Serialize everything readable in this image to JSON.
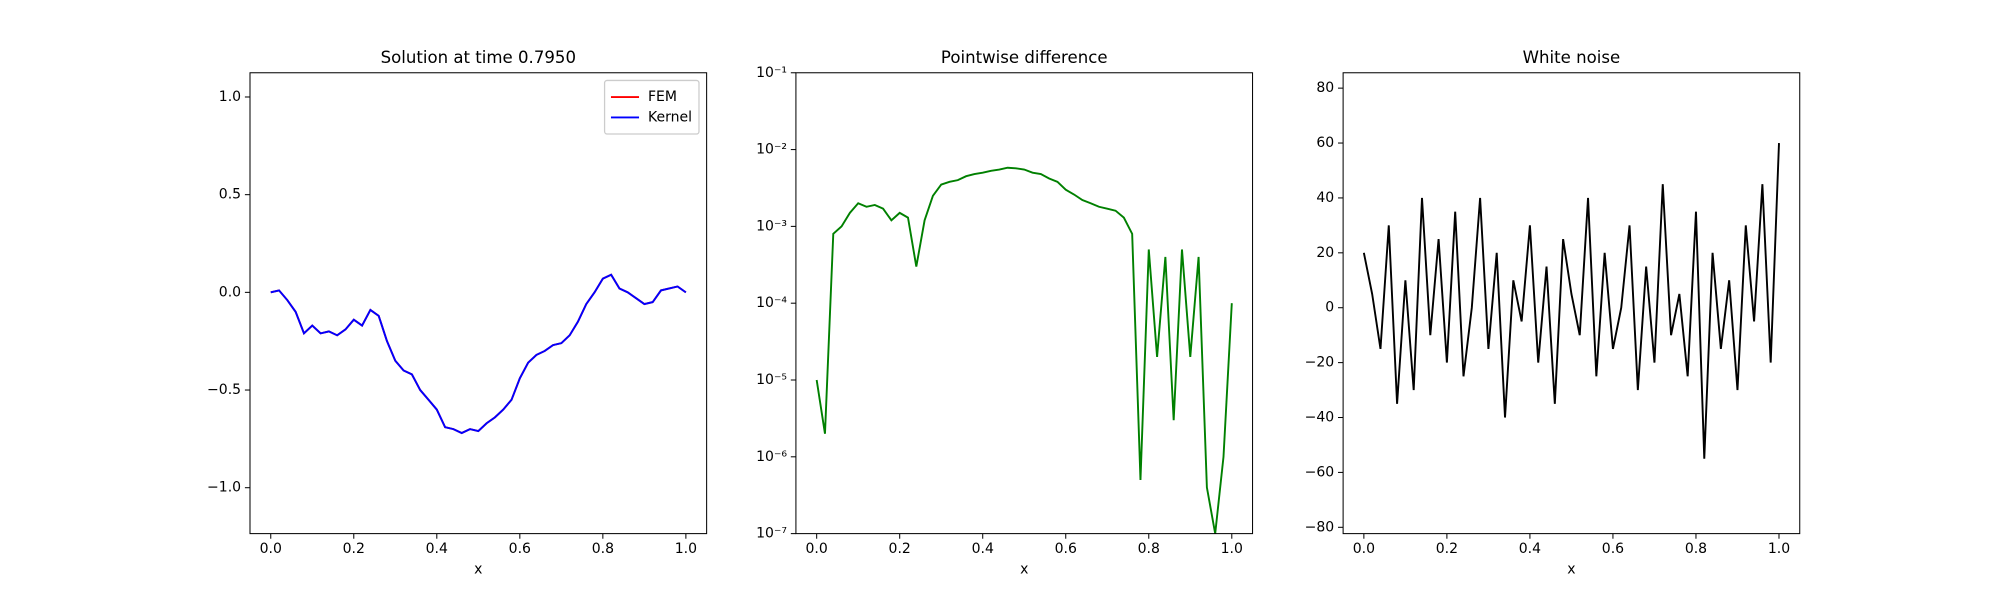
{
  "chart_data": [
    {
      "type": "line",
      "title": "Solution at time 0.7950",
      "xlabel": "x",
      "x": [
        0,
        0.02,
        0.04,
        0.06,
        0.08,
        0.1,
        0.12,
        0.14,
        0.16,
        0.18,
        0.2,
        0.22,
        0.24,
        0.26,
        0.28,
        0.3,
        0.32,
        0.34,
        0.36,
        0.38,
        0.4,
        0.42,
        0.44,
        0.46,
        0.48,
        0.5,
        0.52,
        0.54,
        0.56,
        0.58,
        0.6,
        0.62,
        0.64,
        0.66,
        0.68,
        0.7,
        0.72,
        0.74,
        0.76,
        0.78,
        0.8,
        0.82,
        0.84,
        0.86,
        0.88,
        0.9,
        0.92,
        0.94,
        0.96,
        0.98,
        1.0
      ],
      "series": [
        {
          "name": "FEM",
          "color": "#ff0000",
          "values": [
            0,
            0.01,
            -0.04,
            -0.1,
            -0.21,
            -0.17,
            -0.21,
            -0.2,
            -0.22,
            -0.19,
            -0.14,
            -0.17,
            -0.09,
            -0.12,
            -0.25,
            -0.35,
            -0.4,
            -0.42,
            -0.5,
            -0.55,
            -0.6,
            -0.69,
            -0.7,
            -0.72,
            -0.7,
            -0.71,
            -0.67,
            -0.64,
            -0.6,
            -0.55,
            -0.44,
            -0.36,
            -0.32,
            -0.3,
            -0.27,
            -0.26,
            -0.22,
            -0.15,
            -0.06,
            0.0,
            0.07,
            0.09,
            0.02,
            0.0,
            -0.03,
            -0.06,
            -0.05,
            0.01,
            0.02,
            0.03,
            0.0
          ]
        },
        {
          "name": "Kernel",
          "color": "#0000ff",
          "values": [
            0,
            0.01,
            -0.04,
            -0.1,
            -0.21,
            -0.17,
            -0.21,
            -0.2,
            -0.22,
            -0.19,
            -0.14,
            -0.17,
            -0.09,
            -0.12,
            -0.25,
            -0.35,
            -0.4,
            -0.42,
            -0.5,
            -0.55,
            -0.6,
            -0.69,
            -0.7,
            -0.72,
            -0.7,
            -0.71,
            -0.67,
            -0.64,
            -0.6,
            -0.55,
            -0.44,
            -0.36,
            -0.32,
            -0.3,
            -0.27,
            -0.26,
            -0.22,
            -0.15,
            -0.06,
            0.0,
            0.07,
            0.09,
            0.02,
            0.0,
            -0.03,
            -0.06,
            -0.05,
            0.01,
            0.02,
            0.03,
            0.0
          ]
        }
      ],
      "xlim": [
        -0.05,
        1.05
      ],
      "ylim": [
        -1.235,
        1.124
      ],
      "xticks": [
        {
          "value": 0,
          "label": "0.0"
        },
        {
          "value": 0.2,
          "label": "0.2"
        },
        {
          "value": 0.4,
          "label": "0.4"
        },
        {
          "value": 0.6,
          "label": "0.6"
        },
        {
          "value": 0.8,
          "label": "0.8"
        },
        {
          "value": 1,
          "label": "1.0"
        }
      ],
      "yticks": [
        {
          "value": -1,
          "label": "−1.0"
        },
        {
          "value": -0.5,
          "label": "−0.5"
        },
        {
          "value": 0,
          "label": "0.0"
        },
        {
          "value": 0.5,
          "label": "0.5"
        },
        {
          "value": 1,
          "label": "1.0"
        }
      ],
      "legend": "upper right"
    },
    {
      "type": "line",
      "title": "Pointwise difference",
      "xlabel": "x",
      "log_y": true,
      "x": [
        0,
        0.02,
        0.04,
        0.06,
        0.08,
        0.1,
        0.12,
        0.14,
        0.16,
        0.18,
        0.2,
        0.22,
        0.24,
        0.26,
        0.28,
        0.3,
        0.32,
        0.34,
        0.36,
        0.38,
        0.4,
        0.42,
        0.44,
        0.46,
        0.48,
        0.5,
        0.52,
        0.54,
        0.56,
        0.58,
        0.6,
        0.62,
        0.64,
        0.66,
        0.68,
        0.7,
        0.72,
        0.74,
        0.76,
        0.78,
        0.8,
        0.82,
        0.84,
        0.86,
        0.88,
        0.9,
        0.92,
        0.94,
        0.96,
        0.98,
        1.0
      ],
      "series": [
        {
          "color": "#008000",
          "values": [
            1e-05,
            2e-06,
            0.0008,
            0.001,
            0.0015,
            0.002,
            0.0018,
            0.0019,
            0.0017,
            0.0012,
            0.0015,
            0.0013,
            0.0003,
            0.0012,
            0.0025,
            0.0035,
            0.0038,
            0.004,
            0.0045,
            0.0048,
            0.005,
            0.0053,
            0.0055,
            0.0058,
            0.0057,
            0.0055,
            0.005,
            0.0048,
            0.0042,
            0.0038,
            0.003,
            0.0026,
            0.0022,
            0.002,
            0.0018,
            0.0017,
            0.0016,
            0.0013,
            0.0008,
            5e-07,
            0.0005,
            2e-05,
            0.0004,
            3e-06,
            0.0005,
            2e-05,
            0.0004,
            4e-07,
            1e-07,
            1e-06,
            0.0001
          ]
        }
      ],
      "xlim": [
        -0.05,
        1.05
      ],
      "ylim": [
        1e-07,
        0.1
      ],
      "xticks": [
        {
          "value": 0,
          "label": "0.0"
        },
        {
          "value": 0.2,
          "label": "0.2"
        },
        {
          "value": 0.4,
          "label": "0.4"
        },
        {
          "value": 0.6,
          "label": "0.6"
        },
        {
          "value": 0.8,
          "label": "0.8"
        },
        {
          "value": 1,
          "label": "1.0"
        }
      ],
      "yticks": [
        {
          "value": 1e-07,
          "label": "10⁻⁷"
        },
        {
          "value": 1e-06,
          "label": "10⁻⁶"
        },
        {
          "value": 1e-05,
          "label": "10⁻⁵"
        },
        {
          "value": 0.0001,
          "label": "10⁻⁴"
        },
        {
          "value": 0.001,
          "label": "10⁻³"
        },
        {
          "value": 0.01,
          "label": "10⁻²"
        },
        {
          "value": 0.1,
          "label": "10⁻¹"
        }
      ]
    },
    {
      "type": "line",
      "title": "White noise",
      "xlabel": "x",
      "x": [
        0,
        0.02,
        0.04,
        0.06,
        0.08,
        0.1,
        0.12,
        0.14,
        0.16,
        0.18,
        0.2,
        0.22,
        0.24,
        0.26,
        0.28,
        0.3,
        0.32,
        0.34,
        0.36,
        0.38,
        0.4,
        0.42,
        0.44,
        0.46,
        0.48,
        0.5,
        0.52,
        0.54,
        0.56,
        0.58,
        0.6,
        0.62,
        0.64,
        0.66,
        0.68,
        0.7,
        0.72,
        0.74,
        0.76,
        0.78,
        0.8,
        0.82,
        0.84,
        0.86,
        0.88,
        0.9,
        0.92,
        0.94,
        0.96,
        0.98,
        1.0
      ],
      "series": [
        {
          "color": "#000000",
          "values": [
            20,
            5,
            -15,
            30,
            -35,
            10,
            -30,
            40,
            -10,
            25,
            -20,
            35,
            -25,
            0,
            40,
            -15,
            20,
            -40,
            10,
            -5,
            30,
            -20,
            15,
            -35,
            25,
            5,
            -10,
            40,
            -25,
            20,
            -15,
            0,
            30,
            -30,
            15,
            -20,
            45,
            -10,
            5,
            -25,
            35,
            -55,
            20,
            -15,
            10,
            -30,
            30,
            -5,
            45,
            -20,
            60
          ]
        }
      ],
      "xlim": [
        -0.05,
        1.05
      ],
      "ylim": [
        -82.3,
        85.6
      ],
      "xticks": [
        {
          "value": 0,
          "label": "0.0"
        },
        {
          "value": 0.2,
          "label": "0.2"
        },
        {
          "value": 0.4,
          "label": "0.4"
        },
        {
          "value": 0.6,
          "label": "0.6"
        },
        {
          "value": 0.8,
          "label": "0.8"
        },
        {
          "value": 1,
          "label": "1.0"
        }
      ],
      "yticks": [
        {
          "value": -80,
          "label": "−80"
        },
        {
          "value": -60,
          "label": "−60"
        },
        {
          "value": -40,
          "label": "−40"
        },
        {
          "value": -20,
          "label": "−20"
        },
        0,
        20,
        40,
        60,
        80
      ]
    }
  ]
}
